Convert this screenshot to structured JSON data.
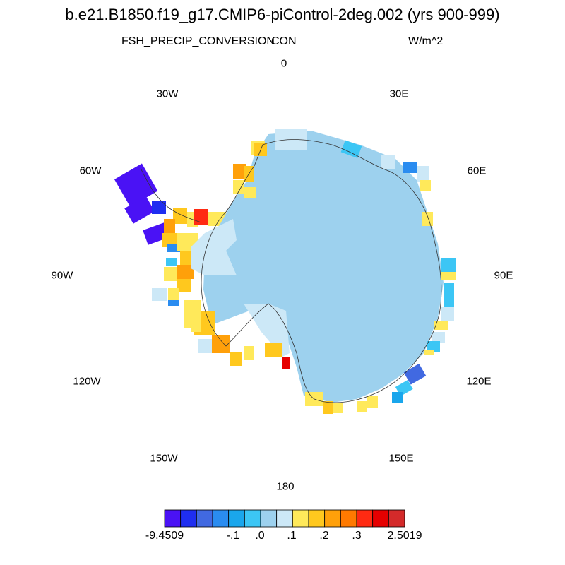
{
  "title": "b.e21.B1850.f19_g17.CMIP6-piControl-2deg.002 (yrs 900-999)",
  "variable": "FSH_PRECIP_CONVERSION",
  "center_label": "CON",
  "units": "W/m^2",
  "longitude_labels": [
    "0",
    "30E",
    "60E",
    "90E",
    "120E",
    "150E",
    "180",
    "150W",
    "120W",
    "90W",
    "60W",
    "30W"
  ],
  "colorbar": {
    "colors": [
      "#4a12f5",
      "#1f2ef0",
      "#4169e1",
      "#2a8cf0",
      "#1aa6ec",
      "#3cc6f5",
      "#9dd1ee",
      "#cce8f7",
      "#ffe95a",
      "#ffc81e",
      "#ffa00a",
      "#ff7a00",
      "#ff2a12",
      "#e60000",
      "#d42a2a"
    ],
    "tick_labels": [
      "-9.4509",
      "-.1",
      ".0",
      ".1",
      ".2",
      ".3",
      "2.5019"
    ]
  },
  "chart_data": {
    "type": "polar_map",
    "projection": "south polar stereographic",
    "region": "Antarctica",
    "variable": "FSH_PRECIP_CONVERSION",
    "units": "W/m^2",
    "color_levels": [
      "-9.4509",
      "-.1",
      ".0",
      ".1",
      ".2",
      ".3",
      "2.5019"
    ],
    "continent_value_color": "#9dd1ee",
    "ice_shelf_value_color": "#cce8f7"
  }
}
